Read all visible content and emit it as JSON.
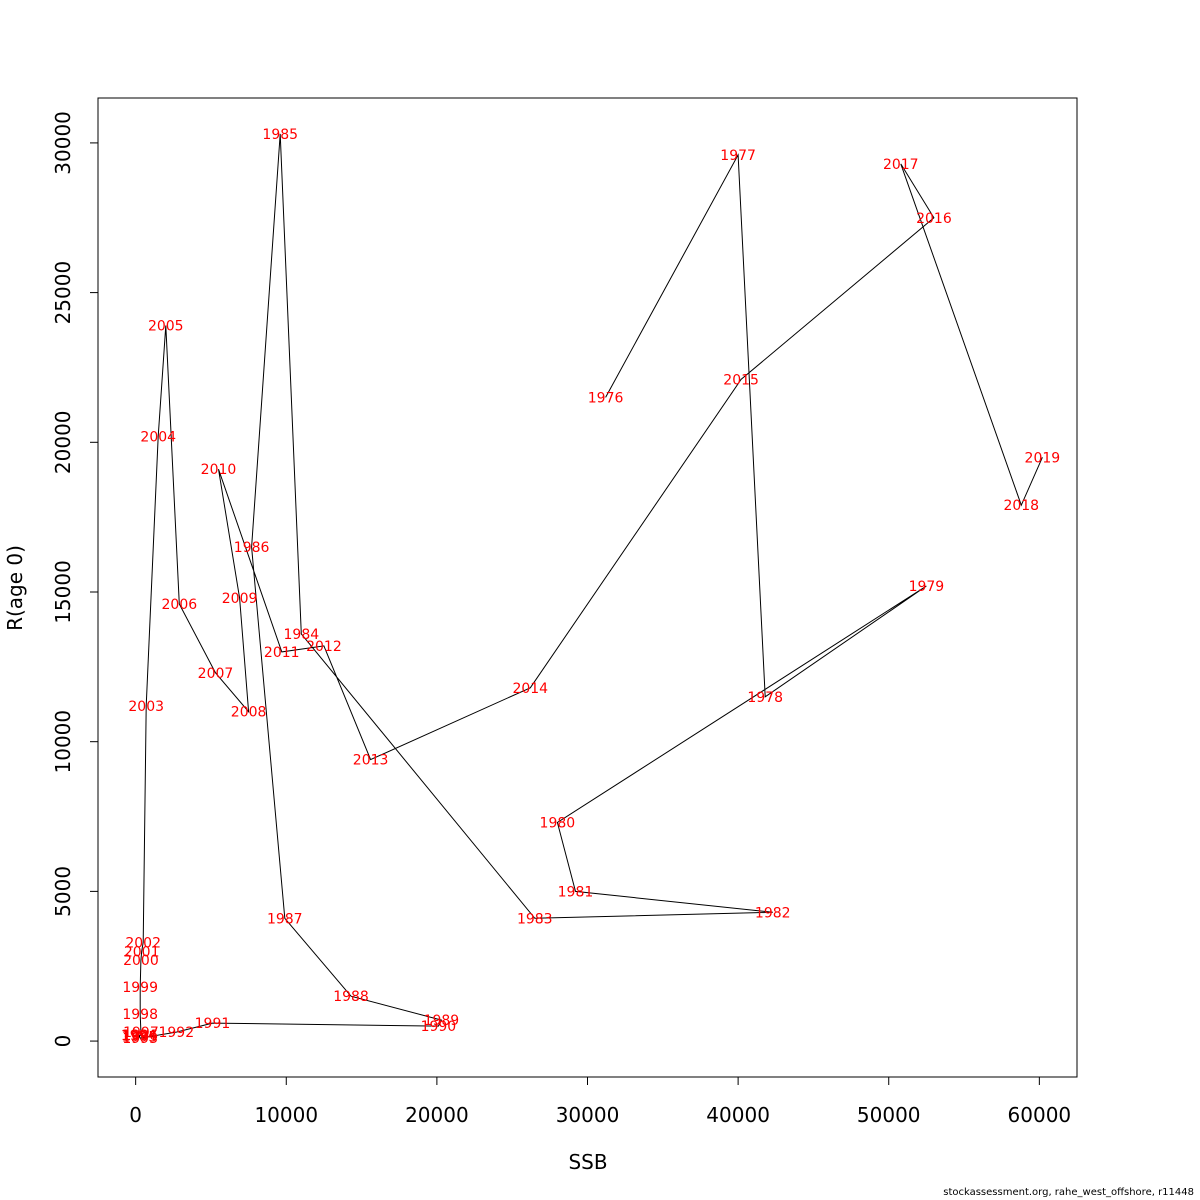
{
  "chart_data": {
    "type": "scatter",
    "connected": true,
    "title": "",
    "xlabel": "SSB",
    "ylabel": "R(age 0)",
    "xlim": [
      -2500,
      62500
    ],
    "ylim": [
      -1200,
      31500
    ],
    "xticks": [
      0,
      10000,
      20000,
      30000,
      40000,
      50000,
      60000
    ],
    "yticks": [
      0,
      5000,
      10000,
      15000,
      20000,
      25000,
      30000
    ],
    "line_color": "#000000",
    "label_color": "#ff0000",
    "grid": false,
    "points": [
      {
        "year": "1976",
        "x": 31200,
        "y": 21500
      },
      {
        "year": "1977",
        "x": 40000,
        "y": 29600
      },
      {
        "year": "1978",
        "x": 41800,
        "y": 11500
      },
      {
        "year": "1979",
        "x": 52500,
        "y": 15200
      },
      {
        "year": "1980",
        "x": 28000,
        "y": 7300
      },
      {
        "year": "1981",
        "x": 29200,
        "y": 5000
      },
      {
        "year": "1982",
        "x": 42300,
        "y": 4300
      },
      {
        "year": "1983",
        "x": 26500,
        "y": 4100
      },
      {
        "year": "1984",
        "x": 11000,
        "y": 13600
      },
      {
        "year": "1985",
        "x": 9600,
        "y": 30300
      },
      {
        "year": "1986",
        "x": 7700,
        "y": 16500
      },
      {
        "year": "1987",
        "x": 9900,
        "y": 4100
      },
      {
        "year": "1988",
        "x": 14300,
        "y": 1500
      },
      {
        "year": "1989",
        "x": 20300,
        "y": 700
      },
      {
        "year": "1990",
        "x": 20100,
        "y": 500
      },
      {
        "year": "1991",
        "x": 5100,
        "y": 600
      },
      {
        "year": "1992",
        "x": 2700,
        "y": 300
      },
      {
        "year": "1993",
        "x": 300,
        "y": 100
      },
      {
        "year": "1994",
        "x": 200,
        "y": 200
      },
      {
        "year": "1995",
        "x": 250,
        "y": 150
      },
      {
        "year": "1996",
        "x": 300,
        "y": 200
      },
      {
        "year": "1997",
        "x": 350,
        "y": 300
      },
      {
        "year": "1998",
        "x": 300,
        "y": 900
      },
      {
        "year": "1999",
        "x": 300,
        "y": 1800
      },
      {
        "year": "2000",
        "x": 350,
        "y": 2700
      },
      {
        "year": "2001",
        "x": 400,
        "y": 3000
      },
      {
        "year": "2002",
        "x": 500,
        "y": 3300
      },
      {
        "year": "2003",
        "x": 700,
        "y": 11200
      },
      {
        "year": "2004",
        "x": 1500,
        "y": 20200
      },
      {
        "year": "2005",
        "x": 2000,
        "y": 23900
      },
      {
        "year": "2006",
        "x": 2900,
        "y": 14600
      },
      {
        "year": "2007",
        "x": 5300,
        "y": 12300
      },
      {
        "year": "2008",
        "x": 7500,
        "y": 11000
      },
      {
        "year": "2009",
        "x": 6900,
        "y": 14800
      },
      {
        "year": "2010",
        "x": 5500,
        "y": 19100
      },
      {
        "year": "2011",
        "x": 9700,
        "y": 13000
      },
      {
        "year": "2012",
        "x": 12500,
        "y": 13200
      },
      {
        "year": "2013",
        "x": 15600,
        "y": 9400
      },
      {
        "year": "2014",
        "x": 26200,
        "y": 11800
      },
      {
        "year": "2015",
        "x": 40200,
        "y": 22100
      },
      {
        "year": "2016",
        "x": 53000,
        "y": 27500
      },
      {
        "year": "2017",
        "x": 50800,
        "y": 29300
      },
      {
        "year": "2018",
        "x": 58800,
        "y": 17900
      },
      {
        "year": "2019",
        "x": 60200,
        "y": 19500
      }
    ]
  },
  "credit": "stockassessment.org, rahe_west_offshore, r11448"
}
